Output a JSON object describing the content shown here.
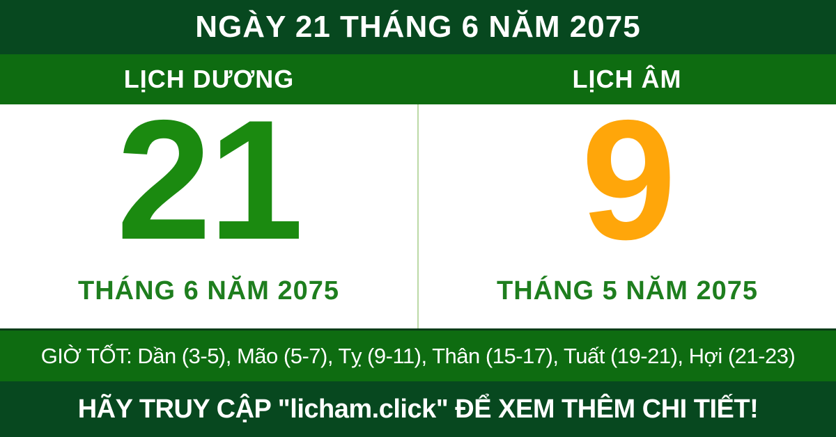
{
  "header": {
    "title": "NGÀY 21 THÁNG 6 NĂM 2075"
  },
  "calendar": {
    "solar": {
      "label": "LỊCH DƯƠNG",
      "day": "21",
      "month_year": "THÁNG 6 NĂM 2075"
    },
    "lunar": {
      "label": "LỊCH ÂM",
      "day": "9",
      "month_year": "THÁNG 5 NĂM 2075"
    }
  },
  "good_hours": {
    "text": "GIỜ TỐT: Dần (3-5), Mão (5-7), Tỵ (9-11), Thân (15-17), Tuất (19-21), Hợi (21-23)"
  },
  "footer": {
    "text": "HÃY TRUY CẬP \"licham.click\" ĐỂ XEM THÊM CHI TIẾT!"
  },
  "colors": {
    "dark_green": "#07481f",
    "band_green": "#0e6c11",
    "solar_day_green": "#1b8a10",
    "lunar_day_orange": "#ffa60a",
    "label_green": "#1e7e1e",
    "divider": "#bcd9a6"
  }
}
